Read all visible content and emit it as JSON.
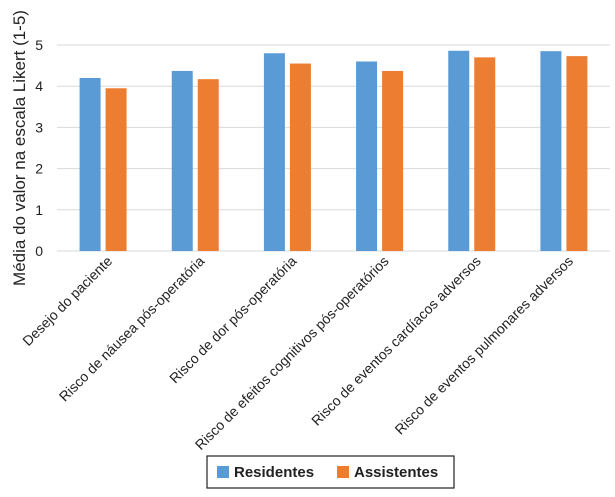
{
  "chart_data": {
    "type": "bar",
    "title": "",
    "xlabel": "",
    "ylabel": "Média do valor na escala Likert (1-5)",
    "ylim": [
      0,
      5
    ],
    "yticks": [
      0,
      1,
      2,
      3,
      4,
      5
    ],
    "grid": true,
    "legend_position": "bottom",
    "categories": [
      "Desejo do paciente",
      "Risco de náusea pós-operatória",
      "Risco de dor pós-operatória",
      "Risco de efeitos cognitivos pós-operatórios",
      "Risco de eventos cardíacos adversos",
      "Risco de eventos pulmonares adversos"
    ],
    "series": [
      {
        "name": "Residentes",
        "color": "#5b9bd5",
        "values": [
          4.2,
          4.37,
          4.8,
          4.6,
          4.86,
          4.85
        ]
      },
      {
        "name": "Assistentes",
        "color": "#ed7d31",
        "values": [
          3.95,
          4.17,
          4.55,
          4.37,
          4.7,
          4.73
        ]
      }
    ]
  }
}
